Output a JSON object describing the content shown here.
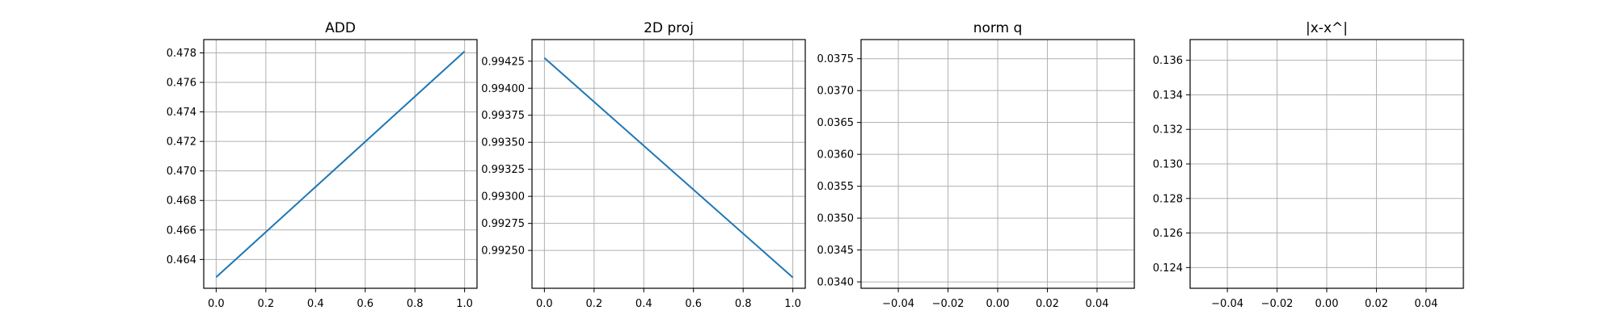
{
  "colors": {
    "line": "#1f77b4",
    "grid": "#b0b0b0",
    "frame": "#000000"
  },
  "chart_data": [
    {
      "type": "line",
      "title": "ADD",
      "xlabel": "",
      "ylabel": "",
      "grid": true,
      "xlim": [
        -0.05,
        1.05
      ],
      "ylim": [
        0.46205,
        0.4789
      ],
      "xticks": [
        0.0,
        0.2,
        0.4,
        0.6,
        0.8,
        1.0
      ],
      "xtick_labels": [
        "0.0",
        "0.2",
        "0.4",
        "0.6",
        "0.8",
        "1.0"
      ],
      "yticks": [
        0.464,
        0.466,
        0.468,
        0.47,
        0.472,
        0.474,
        0.476,
        0.478
      ],
      "ytick_labels": [
        "0.464",
        "0.466",
        "0.468",
        "0.470",
        "0.472",
        "0.474",
        "0.476",
        "0.478"
      ],
      "series": [
        {
          "x": [
            0,
            1
          ],
          "y": [
            0.4628,
            0.4781
          ]
        }
      ]
    },
    {
      "type": "line",
      "title": "2D proj",
      "xlabel": "",
      "ylabel": "",
      "grid": true,
      "xlim": [
        -0.05,
        1.05
      ],
      "ylim": [
        0.99215,
        0.99445
      ],
      "xticks": [
        0.0,
        0.2,
        0.4,
        0.6,
        0.8,
        1.0
      ],
      "xtick_labels": [
        "0.0",
        "0.2",
        "0.4",
        "0.6",
        "0.8",
        "1.0"
      ],
      "yticks": [
        0.9925,
        0.99275,
        0.993,
        0.99325,
        0.9935,
        0.99375,
        0.994,
        0.99425
      ],
      "ytick_labels": [
        "0.99250",
        "0.99275",
        "0.99300",
        "0.99325",
        "0.99350",
        "0.99375",
        "0.99400",
        "0.99425"
      ],
      "series": [
        {
          "x": [
            0,
            1
          ],
          "y": [
            0.99428,
            0.99225
          ]
        }
      ]
    },
    {
      "type": "line",
      "title": "norm q",
      "xlabel": "",
      "ylabel": "",
      "grid": true,
      "xlim": [
        -0.055,
        0.055
      ],
      "ylim": [
        0.0339,
        0.0378
      ],
      "xticks": [
        -0.04,
        -0.02,
        0.0,
        0.02,
        0.04
      ],
      "xtick_labels": [
        "−0.04",
        "−0.02",
        "0.00",
        "0.02",
        "0.04"
      ],
      "yticks": [
        0.034,
        0.0345,
        0.035,
        0.0355,
        0.036,
        0.0365,
        0.037,
        0.0375
      ],
      "ytick_labels": [
        "0.0340",
        "0.0345",
        "0.0350",
        "0.0355",
        "0.0360",
        "0.0365",
        "0.0370",
        "0.0375"
      ],
      "series": []
    },
    {
      "type": "line",
      "title": "|x-x^|",
      "xlabel": "",
      "ylabel": "",
      "grid": true,
      "xlim": [
        -0.055,
        0.055
      ],
      "ylim": [
        0.1228,
        0.1372
      ],
      "xticks": [
        -0.04,
        -0.02,
        0.0,
        0.02,
        0.04
      ],
      "xtick_labels": [
        "−0.04",
        "−0.02",
        "0.00",
        "0.02",
        "0.04"
      ],
      "yticks": [
        0.124,
        0.126,
        0.128,
        0.13,
        0.132,
        0.134,
        0.136
      ],
      "ytick_labels": [
        "0.124",
        "0.126",
        "0.128",
        "0.130",
        "0.132",
        "0.134",
        "0.136"
      ],
      "series": []
    }
  ]
}
